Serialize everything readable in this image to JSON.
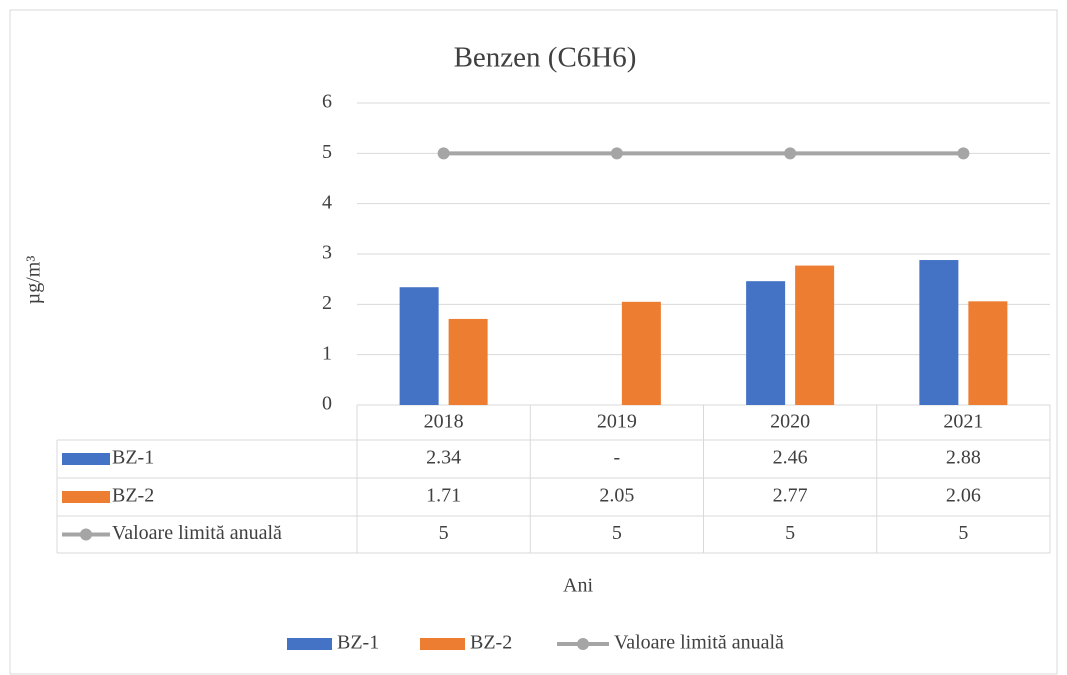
{
  "chart_data": {
    "type": "bar",
    "title": "Benzen (C6H6)",
    "categories": [
      "2018",
      "2019",
      "2020",
      "2021"
    ],
    "series": [
      {
        "name": "BZ-1",
        "type": "bar",
        "color": "#4472c4",
        "values": [
          2.34,
          null,
          2.46,
          2.88
        ],
        "value_labels": [
          "2.34",
          "-",
          "2.46",
          "2.88"
        ]
      },
      {
        "name": "BZ-2",
        "type": "bar",
        "color": "#ed7d31",
        "values": [
          1.71,
          2.05,
          2.77,
          2.06
        ]
      },
      {
        "name": "Valoare limită anuală",
        "type": "line",
        "color": "#a5a5a5",
        "values": [
          5,
          5,
          5,
          5
        ]
      }
    ],
    "y_label": "µg/m³",
    "x_label": "Ani",
    "ylim": [
      0,
      6
    ],
    "yticks": [
      0,
      1,
      2,
      3,
      4,
      5,
      6
    ],
    "grid": true,
    "legend": "bottom"
  }
}
